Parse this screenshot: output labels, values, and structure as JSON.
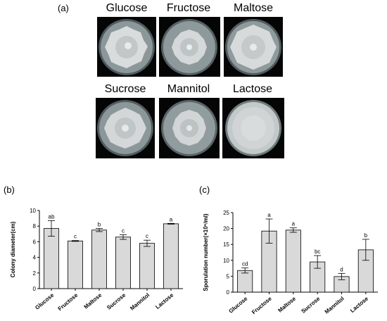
{
  "figure": {
    "panel_a_label": "(a)",
    "panel_b_label": "(b)",
    "panel_c_label": "(c)",
    "plates": [
      {
        "label": "Glucose",
        "type": "colony"
      },
      {
        "label": "Fructose",
        "type": "colony"
      },
      {
        "label": "Maltose",
        "type": "colony"
      },
      {
        "label": "Sucrose",
        "type": "colony"
      },
      {
        "label": "Mannitol",
        "type": "colony"
      },
      {
        "label": "Lactose",
        "type": "diffuse"
      }
    ],
    "colors": {
      "bar_fill": "#d9d9d9",
      "bar_stroke": "#000000",
      "plate_bg": "#000000"
    }
  },
  "chart_data": [
    {
      "type": "bar",
      "categories": [
        "Glucose",
        "Fructose",
        "Maltose",
        "Sucrose",
        "Mannitol",
        "Lactose"
      ],
      "values": [
        7.7,
        6.1,
        7.5,
        6.6,
        5.8,
        8.3
      ],
      "errors": [
        1.0,
        0.05,
        0.2,
        0.3,
        0.4,
        0.05
      ],
      "letters": [
        "ab",
        "c",
        "b",
        "c",
        "c",
        "a"
      ],
      "ylabel": "Colony diameter(cm)",
      "yticks": [
        "0",
        "2",
        "4",
        "6",
        "8",
        "10"
      ],
      "ylim": [
        0,
        10
      ]
    },
    {
      "type": "bar",
      "categories": [
        "Glucose",
        "Fructose",
        "Maltose",
        "Sucrose",
        "Mannitol",
        "Lactose"
      ],
      "values": [
        6.8,
        19.2,
        19.5,
        9.5,
        4.9,
        13.3
      ],
      "errors": [
        0.8,
        3.8,
        0.7,
        2.0,
        1.0,
        3.3
      ],
      "letters": [
        "cd",
        "a",
        "a",
        "bc",
        "d",
        "b"
      ],
      "ylabel": "Sporulation number(×10⁶/ml)",
      "yticks": [
        "0",
        "5",
        "10",
        "15",
        "20",
        "25"
      ],
      "ylim": [
        0,
        25
      ]
    }
  ]
}
